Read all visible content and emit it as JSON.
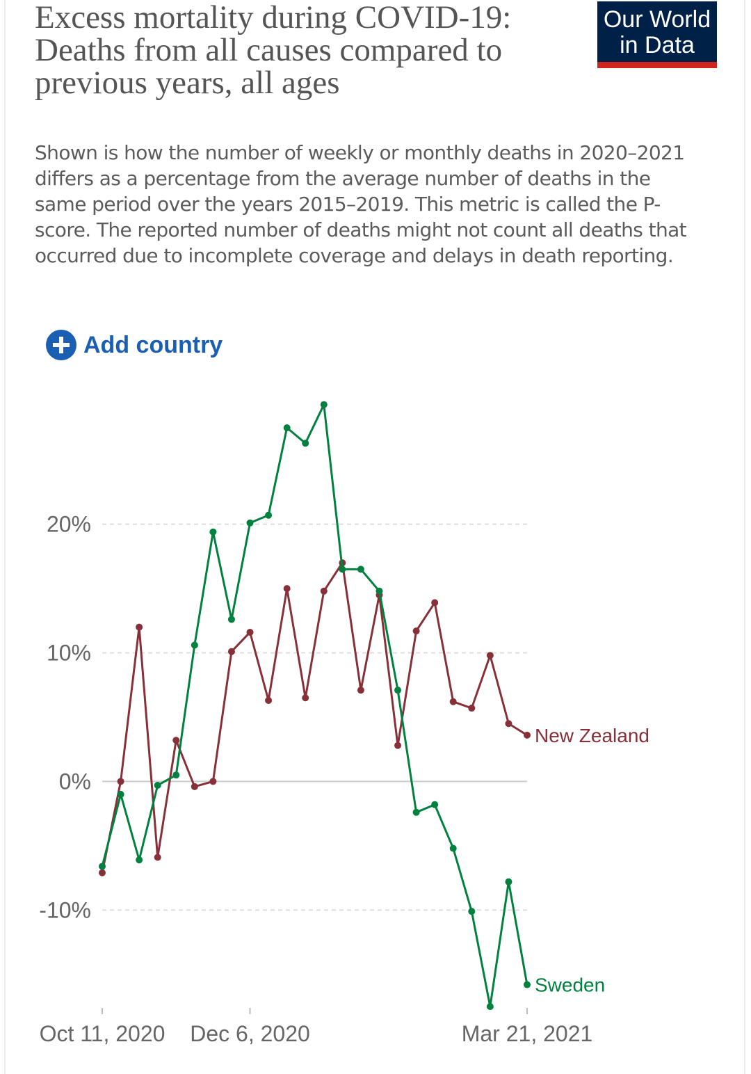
{
  "header": {
    "title": "Excess mortality during COVID-19: Deaths from all causes compared to previous years, all ages",
    "subtitle": "Shown is how the number of weekly or monthly deaths in 2020–2021 differs as a percentage from the average number of deaths in the same period over the years 2015–2019. This metric is called the P-score. The reported number of deaths might not count all deaths that occurred due to incomplete coverage and delays in death reporting.",
    "logo_line1": "Our World",
    "logo_line2": "in Data",
    "add_country_label": "Add country"
  },
  "colors": {
    "new_zealand": "#883039",
    "sweden": "#00813e",
    "brand_navy": "#002147",
    "brand_red": "#ce261e",
    "link_blue": "#1a5fb4"
  },
  "chart_data": {
    "type": "line",
    "title": "Excess mortality during COVID-19: Deaths from all causes compared to previous years, all ages",
    "xlabel": "",
    "ylabel": "",
    "ylim": [
      -17.5,
      29.5
    ],
    "y_ticks": [
      -10,
      0,
      10,
      20
    ],
    "y_tick_labels": [
      "-10%",
      "0%",
      "10%",
      "20%"
    ],
    "x_ticks": [
      0,
      8,
      23
    ],
    "x_tick_labels": [
      "Oct 11, 2020",
      "Dec 6, 2020",
      "Mar 21, 2021"
    ],
    "grid": "horizontal dashed",
    "legend": "inline at line ends (right)",
    "x": [
      "Oct 11, 2020",
      "Oct 18, 2020",
      "Oct 25, 2020",
      "Nov 1, 2020",
      "Nov 8, 2020",
      "Nov 15, 2020",
      "Nov 22, 2020",
      "Nov 29, 2020",
      "Dec 6, 2020",
      "Dec 13, 2020",
      "Dec 20, 2020",
      "Dec 27, 2020",
      "Jan 3, 2021",
      "Jan 10, 2021",
      "Jan 17, 2021",
      "Jan 24, 2021",
      "Jan 31, 2021",
      "Feb 7, 2021",
      "Feb 14, 2021",
      "Feb 21, 2021",
      "Feb 28, 2021",
      "Mar 7, 2021",
      "Mar 14, 2021",
      "Mar 21, 2021"
    ],
    "series": [
      {
        "name": "New Zealand",
        "values": [
          -7.1,
          0.0,
          12.0,
          -5.9,
          3.2,
          -0.4,
          0.0,
          10.1,
          11.6,
          6.3,
          15.0,
          6.5,
          14.8,
          17.0,
          7.1,
          14.5,
          2.8,
          11.7,
          13.9,
          6.2,
          5.7,
          9.8,
          4.5,
          3.6
        ]
      },
      {
        "name": "Sweden",
        "values": [
          -6.6,
          -1.0,
          -6.1,
          -0.3,
          0.5,
          10.6,
          19.4,
          12.6,
          20.1,
          20.7,
          27.5,
          26.3,
          29.3,
          16.5,
          16.5,
          14.8,
          7.1,
          -2.4,
          -1.8,
          -5.2,
          -10.1,
          -17.5,
          -7.8,
          -15.8
        ]
      }
    ]
  }
}
